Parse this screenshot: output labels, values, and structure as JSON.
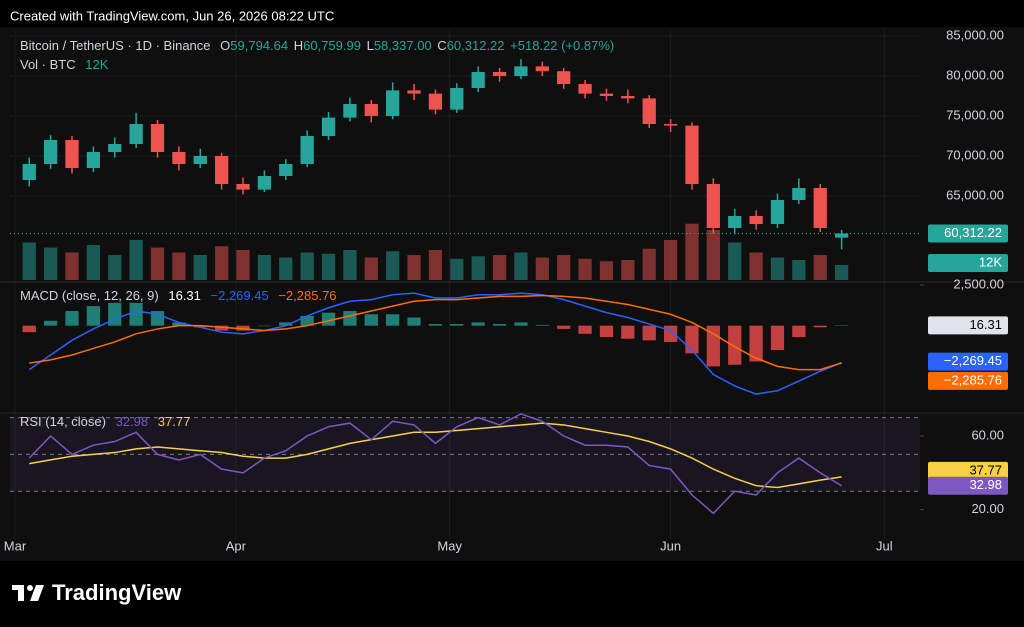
{
  "header": {
    "created": "Created with TradingView.com, Jun 26, 2026 08:22 UTC",
    "brand": "TradingView"
  },
  "chart_data": {
    "type": "candlestick",
    "symbol": "Bitcoin / TetherUS · 1D · Binance",
    "legend": {
      "o_prefix": "O",
      "open": "59,794.64",
      "h_prefix": "H",
      "high": "60,759.99",
      "l_prefix": "L",
      "low": "58,337.00",
      "c_prefix": "C",
      "close": "60,312.22",
      "change": "+518.22 (+0.87%)"
    },
    "x": [
      2,
      5,
      8,
      11,
      14,
      17,
      20,
      23,
      26,
      29,
      32,
      35,
      38,
      41,
      44,
      47,
      50,
      53,
      56,
      59,
      62,
      65,
      68,
      71,
      74,
      77,
      80,
      83,
      86,
      89,
      92,
      95,
      98,
      101,
      104,
      107,
      110,
      113,
      116
    ],
    "xlim": [
      -0.7,
      127
    ],
    "xticks": [
      {
        "value": 0,
        "label": "Mar"
      },
      {
        "value": 31,
        "label": "Apr"
      },
      {
        "value": 61,
        "label": "May"
      },
      {
        "value": 92,
        "label": "Jun"
      },
      {
        "value": 122,
        "label": "Jul"
      }
    ],
    "ohlc": [
      [
        67000,
        69800,
        66200,
        69000
      ],
      [
        69000,
        72600,
        68400,
        72000
      ],
      [
        72000,
        72500,
        67800,
        68500
      ],
      [
        68500,
        71200,
        68000,
        70500
      ],
      [
        70500,
        72300,
        69800,
        71500
      ],
      [
        71500,
        75400,
        71000,
        74000
      ],
      [
        74000,
        74500,
        69800,
        70500
      ],
      [
        70500,
        71200,
        68200,
        69000
      ],
      [
        69000,
        70900,
        68500,
        70000
      ],
      [
        70000,
        70400,
        65800,
        66500
      ],
      [
        66500,
        67300,
        65200,
        65800
      ],
      [
        65800,
        68200,
        65500,
        67500
      ],
      [
        67500,
        69600,
        67000,
        69000
      ],
      [
        69000,
        73200,
        68600,
        72500
      ],
      [
        72500,
        75500,
        72000,
        74800
      ],
      [
        74800,
        77300,
        74300,
        76500
      ],
      [
        76500,
        77000,
        74200,
        75000
      ],
      [
        75000,
        79200,
        74600,
        78200
      ],
      [
        78200,
        79000,
        77000,
        77800
      ],
      [
        77800,
        78300,
        75200,
        75800
      ],
      [
        75800,
        79100,
        75400,
        78500
      ],
      [
        78500,
        81200,
        78000,
        80500
      ],
      [
        80500,
        81000,
        79300,
        80000
      ],
      [
        80000,
        82100,
        79600,
        81200
      ],
      [
        81200,
        81800,
        80000,
        80600
      ],
      [
        80600,
        81000,
        78400,
        79000
      ],
      [
        79000,
        79500,
        77200,
        77800
      ],
      [
        77800,
        78400,
        76900,
        77500
      ],
      [
        77500,
        78300,
        76600,
        77200
      ],
      [
        77200,
        77600,
        73500,
        74000
      ],
      [
        74000,
        74600,
        73000,
        73800
      ],
      [
        73800,
        74200,
        65800,
        66500
      ],
      [
        66500,
        67200,
        60300,
        61000
      ],
      [
        61000,
        63400,
        60200,
        62500
      ],
      [
        62500,
        63200,
        60800,
        61500
      ],
      [
        61500,
        65300,
        61000,
        64500
      ],
      [
        64500,
        67200,
        64000,
        66000
      ],
      [
        66000,
        66500,
        60500,
        61000
      ],
      [
        59794.64,
        60759.99,
        58337.0,
        60312.22
      ]
    ],
    "up_color": "#26a69a",
    "down_color": "#ef5350",
    "ylim": [
      54500,
      85750
    ],
    "yticks": [
      {
        "value": 65000,
        "label": "65,000.00"
      },
      {
        "value": 70000,
        "label": "70,000.00"
      },
      {
        "value": 75000,
        "label": "75,000.00"
      },
      {
        "value": 80000,
        "label": "80,000.00"
      },
      {
        "value": 85000,
        "label": "85,000.00"
      }
    ],
    "last_price": {
      "value": 60312.22,
      "label": "60,312.22"
    },
    "volume": {
      "title": "Vol · BTC",
      "last_label": "12K",
      "ylim": [
        0,
        200000
      ],
      "values": [
        30000,
        26000,
        22000,
        28000,
        20000,
        32000,
        26000,
        22000,
        20000,
        27000,
        24000,
        20000,
        18000,
        22000,
        21000,
        24000,
        18000,
        23000,
        20000,
        24000,
        17000,
        19000,
        20000,
        22000,
        18000,
        20000,
        17000,
        15000,
        16000,
        25000,
        32000,
        45000,
        40000,
        30000,
        22000,
        18000,
        16000,
        20000,
        12000
      ]
    },
    "macd": {
      "title": "MACD (close, 12, 26, 9)",
      "ylim": [
        -5180,
        2560
      ],
      "yticks": [
        {
          "value": 2500,
          "label": "2,500.00"
        }
      ],
      "histogram": {
        "up_color": "#26a69a",
        "down_color": "#ff5252",
        "values": [
          -400,
          300,
          900,
          1200,
          1400,
          1400,
          900,
          200,
          -100,
          -300,
          -300,
          0,
          200,
          600,
          800,
          900,
          700,
          700,
          500,
          100,
          100,
          200,
          100,
          200,
          50,
          -200,
          -500,
          -700,
          -800,
          -900,
          -1000,
          -1700,
          -2500,
          -2400,
          -2200,
          -1500,
          -700,
          -100,
          16.31
        ]
      },
      "line": {
        "color": "#2962ff",
        "last_label": "−2,269.45",
        "values": [
          -2700,
          -1800,
          -900,
          -200,
          400,
          900,
          700,
          200,
          -100,
          -400,
          -500,
          -300,
          0,
          600,
          1100,
          1500,
          1600,
          1900,
          2000,
          1700,
          1700,
          1900,
          1900,
          2000,
          1900,
          1600,
          1200,
          800,
          500,
          100,
          -300,
          -1500,
          -3000,
          -3700,
          -4200,
          -4000,
          -3400,
          -2800,
          -2269.45
        ]
      },
      "signal": {
        "color": "#ff6d00",
        "last_label": "−2,285.76",
        "values": [
          -2300,
          -2100,
          -1800,
          -1400,
          -1000,
          -500,
          -200,
          0,
          0,
          -100,
          -200,
          -300,
          -200,
          0,
          300,
          600,
          900,
          1200,
          1500,
          1600,
          1600,
          1700,
          1800,
          1800,
          1850,
          1800,
          1700,
          1500,
          1300,
          1000,
          700,
          200,
          -500,
          -1300,
          -2000,
          -2500,
          -2700,
          -2700,
          -2285.76
        ]
      }
    },
    "rsi": {
      "title": "RSI (14, close)",
      "ylim": [
        3.5,
        71.4
      ],
      "yticks": [
        {
          "value": 60,
          "label": "60.00"
        },
        {
          "value": 20,
          "label": "20.00"
        }
      ],
      "bands": [
        70,
        50,
        30
      ],
      "band_color": "#7e57c2",
      "line": {
        "color": "#7e57c2",
        "values": [
          48,
          60,
          50,
          55,
          57,
          62,
          50,
          47,
          50,
          42,
          40,
          48,
          52,
          60,
          65,
          67,
          58,
          68,
          66,
          56,
          65,
          70,
          66,
          72,
          68,
          60,
          55,
          55,
          54,
          44,
          42,
          28,
          18,
          30,
          28,
          40,
          48,
          40,
          32.98
        ]
      },
      "ma": {
        "color": "#f7d046",
        "values": [
          45,
          47,
          49,
          50,
          51,
          53,
          54,
          53,
          52,
          51,
          49,
          48,
          48,
          50,
          53,
          56,
          58,
          60,
          62,
          62,
          63,
          64,
          65,
          66,
          67,
          66,
          64,
          62,
          60,
          57,
          53,
          48,
          42,
          37,
          33,
          32,
          34,
          36,
          37.77
        ]
      }
    }
  }
}
